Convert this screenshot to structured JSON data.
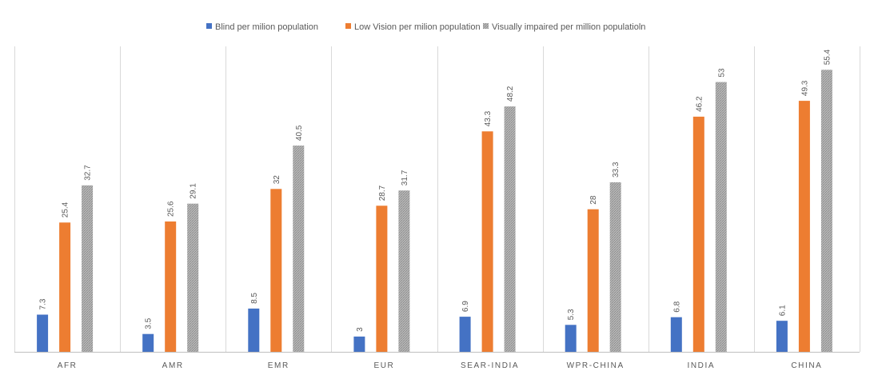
{
  "chart_data": {
    "type": "bar",
    "title": "",
    "xlabel": "",
    "ylabel": "",
    "ylim": [
      0,
      60
    ],
    "grid": "vertical category separators",
    "legend_position": "top",
    "categories": [
      "AFR",
      "AMR",
      "EMR",
      "EUR",
      "SEAR-INDIA",
      "WPR-CHINA",
      "INDIA",
      "CHINA"
    ],
    "series": [
      {
        "name": "Blind per milion population",
        "color": "#4472c4",
        "values": [
          7.3,
          3.5,
          8.5,
          3,
          6.9,
          5.3,
          6.8,
          6.1
        ],
        "labels": [
          "7.3",
          "3.5",
          "8.5",
          "3",
          "6.9",
          "5.3",
          "6.8",
          "6.1"
        ]
      },
      {
        "name": "Low Vision per milion population",
        "color": "#ed7d31",
        "values": [
          25.4,
          25.6,
          32,
          28.7,
          43.3,
          28,
          46.2,
          49.3
        ],
        "labels": [
          "25.4",
          "25.6",
          "32",
          "28.7",
          "43.3",
          "28",
          "46.2",
          "49.3"
        ]
      },
      {
        "name": "Visually impaired per million populatioln",
        "color": "#a5a5a5",
        "values": [
          32.7,
          29.1,
          40.5,
          31.7,
          48.2,
          33.3,
          53,
          55.4
        ],
        "labels": [
          "32.7",
          "29.1",
          "40.5",
          "31.7",
          "48.2",
          "33.3",
          "53",
          "55.4"
        ]
      }
    ]
  }
}
